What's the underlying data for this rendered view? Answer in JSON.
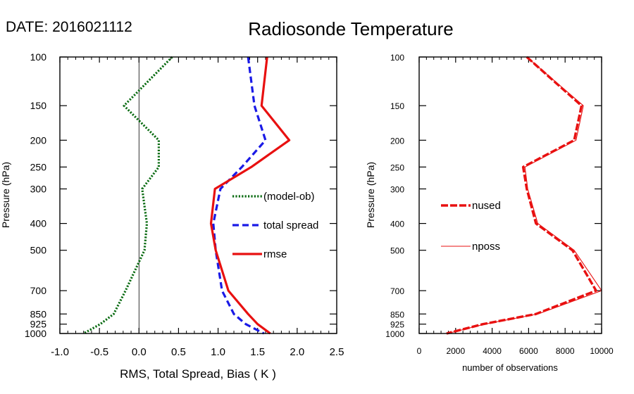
{
  "header": {
    "date_text": "DATE: 2016021112",
    "title": "Radiosonde Temperature"
  },
  "colors": {
    "model_ob": "#0a6b12",
    "total_spread": "#1a1ae6",
    "rmse": "#e81010",
    "axes": "#000000",
    "zero_line": "#000000"
  },
  "chart_data": [
    {
      "type": "line",
      "id": "left",
      "xlabel": "RMS, Total Spread, Bias ( K )",
      "ylabel": "Pressure (hPa)",
      "xlim": [
        -1.0,
        2.5
      ],
      "ylim": [
        1000,
        100
      ],
      "y_scale": "log",
      "x_ticks": [
        -1.0,
        -0.5,
        0.0,
        0.5,
        1.0,
        1.5,
        2.0,
        2.5
      ],
      "x_tick_labels": [
        "-1.0",
        "-0.5",
        "0.0",
        "0.5",
        "1.0",
        "1.5",
        "2.0",
        "2.5"
      ],
      "y_ticks": [
        100,
        150,
        200,
        250,
        300,
        400,
        500,
        700,
        850,
        925,
        1000
      ],
      "y_tick_labels": [
        "100",
        "150",
        "200",
        "250",
        "300",
        "400",
        "500",
        "700",
        "850",
        "925",
        "1000"
      ],
      "pressure": [
        100,
        150,
        200,
        250,
        300,
        400,
        500,
        700,
        850,
        925,
        1000
      ],
      "zero_line_x": 0.0,
      "legend_position": "middle-right",
      "series": [
        {
          "name": "(model-ob)",
          "color_key": "model_ob",
          "style": "dotted",
          "values": [
            0.42,
            -0.19,
            0.25,
            0.25,
            0.04,
            0.1,
            0.07,
            -0.17,
            -0.32,
            -0.49,
            -0.7
          ]
        },
        {
          "name": "total spread",
          "color_key": "total_spread",
          "style": "dashed",
          "values": [
            1.38,
            1.46,
            1.6,
            1.3,
            1.03,
            0.94,
            0.97,
            1.05,
            1.2,
            1.35,
            1.58
          ]
        },
        {
          "name": "rmse",
          "color_key": "rmse",
          "style": "solid",
          "values": [
            1.62,
            1.55,
            1.9,
            1.42,
            0.96,
            0.91,
            0.97,
            1.13,
            1.38,
            1.5,
            1.66
          ]
        }
      ]
    },
    {
      "type": "line",
      "id": "right",
      "xlabel": "number of observations",
      "ylabel": "Pressure (hPa)",
      "xlim": [
        0,
        10000
      ],
      "ylim": [
        1000,
        100
      ],
      "y_scale": "log",
      "x_ticks": [
        0,
        2000,
        4000,
        6000,
        8000,
        10000
      ],
      "x_tick_labels": [
        "0",
        "2000",
        "4000",
        "6000",
        "8000",
        "10000"
      ],
      "y_ticks": [
        100,
        150,
        200,
        250,
        300,
        400,
        500,
        700,
        850,
        925,
        1000
      ],
      "y_tick_labels": [
        "100",
        "150",
        "200",
        "250",
        "300",
        "400",
        "500",
        "700",
        "850",
        "925",
        "1000"
      ],
      "pressure": [
        100,
        150,
        200,
        250,
        300,
        400,
        500,
        700,
        850,
        925,
        1000
      ],
      "legend_position": "middle-left",
      "series": [
        {
          "name": "nused",
          "color_key": "rmse",
          "style": "dashed-thick",
          "values": [
            5900,
            8900,
            8500,
            5700,
            5900,
            6400,
            8400,
            9700,
            6400,
            3500,
            1500
          ]
        },
        {
          "name": "nposs",
          "color_key": "rmse",
          "style": "thin",
          "values": [
            5900,
            9000,
            8600,
            5800,
            5950,
            6500,
            8500,
            10000,
            6500,
            3600,
            1550
          ]
        }
      ]
    }
  ]
}
